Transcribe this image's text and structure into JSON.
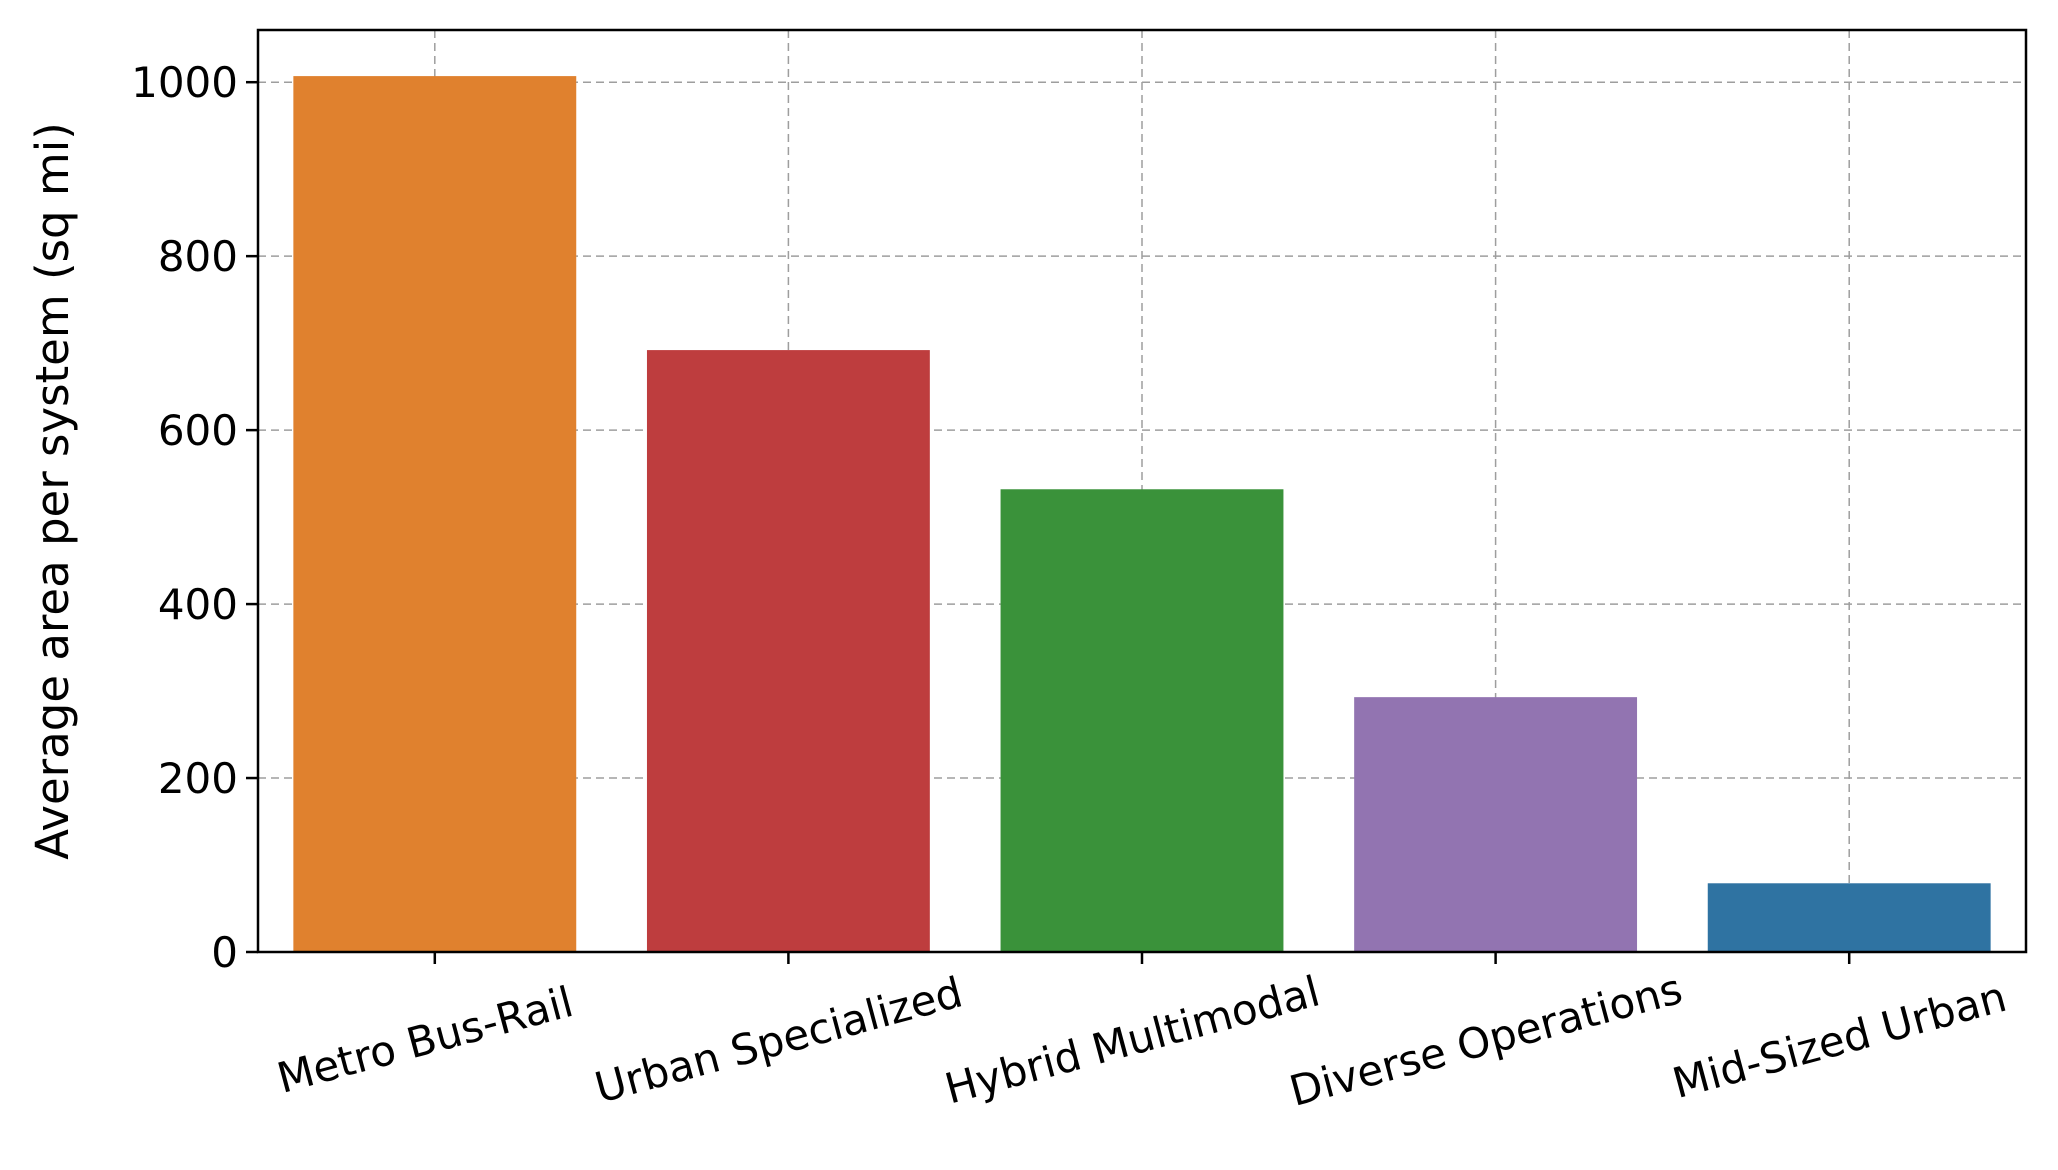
{
  "chart_data": {
    "type": "bar",
    "categories": [
      "Metro Bus-Rail",
      "Urban Specialized",
      "Hybrid Multimodal",
      "Diverse Operations",
      "Mid-Sized Urban"
    ],
    "values": [
      1007,
      692,
      532,
      293,
      79
    ],
    "colors": [
      "#e0812e",
      "#be3d3e",
      "#3a923a",
      "#9274b1",
      "#2f73a2"
    ],
    "title": "",
    "xlabel": "",
    "ylabel": "Average area per system (sq mi)",
    "ylim": [
      0,
      1060
    ],
    "yticks": [
      0,
      200,
      400,
      600,
      800,
      1000
    ],
    "grid": true,
    "xtick_rotation": 15
  }
}
